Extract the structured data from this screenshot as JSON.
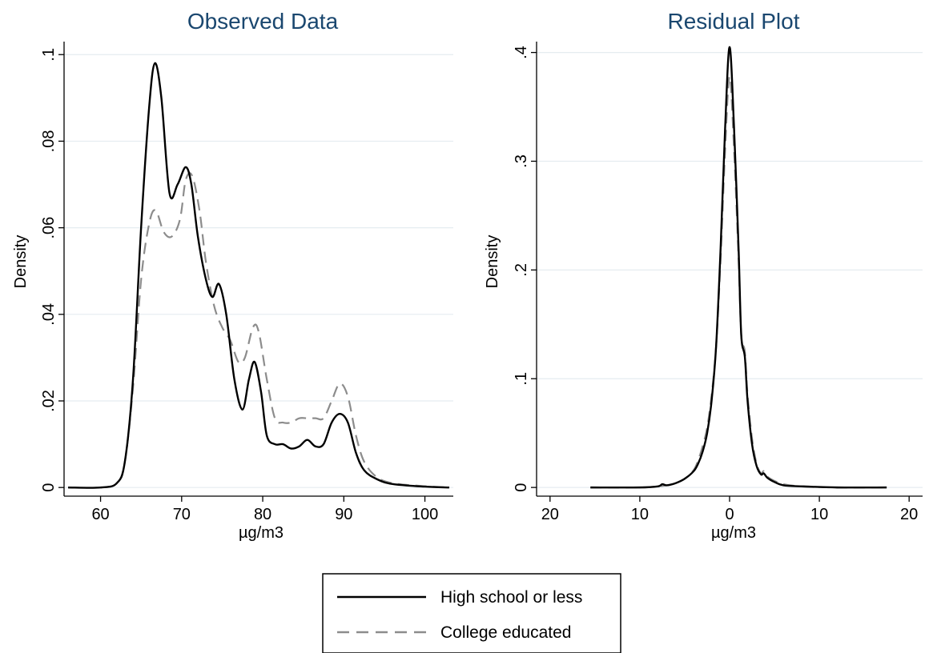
{
  "colors": {
    "background": "#ffffff",
    "title": "#1a476f",
    "grid": "#e5ecf0",
    "axis": "#000000",
    "series_high_school": "#000000",
    "series_college": "#8c8c8c"
  },
  "legend": {
    "entries": [
      {
        "label": "High school or less",
        "style": "solid"
      },
      {
        "label": "College educated",
        "style": "dashed"
      }
    ]
  },
  "chart_data": [
    {
      "type": "line",
      "title": "Observed Data",
      "xlabel": "µg/m3",
      "ylabel": "Density",
      "xlim": [
        55.5,
        103.5
      ],
      "ylim": [
        -0.002,
        0.103
      ],
      "xticks": [
        60,
        70,
        80,
        90,
        100
      ],
      "xtick_labels": [
        "60",
        "70",
        "80",
        "90",
        "100"
      ],
      "yticks": [
        0,
        0.02,
        0.04,
        0.06,
        0.08,
        0.1
      ],
      "ytick_labels": [
        "0",
        ".02",
        ".04",
        ".06",
        ".08",
        ".1"
      ],
      "grid": true,
      "series": [
        {
          "name": "High school or less",
          "style": "solid",
          "x": [
            56,
            60,
            62,
            63,
            64,
            65,
            66,
            66.7,
            67.5,
            68.5,
            69.5,
            70.5,
            71.2,
            72,
            73,
            73.8,
            74.6,
            75.5,
            76.5,
            77.5,
            78.3,
            79,
            79.8,
            80.5,
            81.5,
            82.5,
            83.5,
            84.5,
            85.5,
            86.5,
            87.5,
            88.5,
            89.5,
            90.5,
            91.5,
            92.5,
            94,
            96,
            100,
            103
          ],
          "y": [
            0,
            0,
            0.001,
            0.006,
            0.025,
            0.06,
            0.088,
            0.098,
            0.09,
            0.068,
            0.07,
            0.074,
            0.07,
            0.058,
            0.048,
            0.044,
            0.047,
            0.04,
            0.025,
            0.018,
            0.025,
            0.029,
            0.022,
            0.012,
            0.01,
            0.01,
            0.009,
            0.0095,
            0.011,
            0.0095,
            0.01,
            0.015,
            0.017,
            0.015,
            0.008,
            0.004,
            0.002,
            0.0008,
            0.0002,
            0
          ]
        },
        {
          "name": "College educated",
          "style": "dashed",
          "x": [
            56,
            60,
            62,
            63,
            64,
            65,
            66,
            66.8,
            67.8,
            68.8,
            69.8,
            70.5,
            71.3,
            72.2,
            73,
            74,
            75,
            76,
            77,
            77.8,
            78.8,
            79.5,
            80.5,
            81.5,
            82.5,
            83.5,
            84.5,
            85.5,
            86.5,
            87.5,
            88.5,
            89.5,
            90.5,
            91.5,
            92.5,
            94,
            96,
            100,
            103
          ],
          "y": [
            0,
            0,
            0.001,
            0.006,
            0.023,
            0.048,
            0.061,
            0.064,
            0.059,
            0.058,
            0.062,
            0.071,
            0.072,
            0.064,
            0.052,
            0.042,
            0.037,
            0.034,
            0.029,
            0.03,
            0.037,
            0.036,
            0.025,
            0.016,
            0.015,
            0.015,
            0.016,
            0.016,
            0.016,
            0.016,
            0.02,
            0.024,
            0.021,
            0.012,
            0.006,
            0.0025,
            0.001,
            0.0003,
            0
          ]
        }
      ]
    },
    {
      "type": "line",
      "title": "Residual Plot",
      "xlabel": "µg/m3",
      "ylabel": "Density",
      "xlim": [
        -21.5,
        21.5
      ],
      "ylim": [
        -0.008,
        0.41
      ],
      "xticks": [
        -20,
        -10,
        0,
        10,
        20
      ],
      "xtick_labels": [
        "20",
        "10",
        "0",
        "10",
        "20"
      ],
      "yticks": [
        0,
        0.1,
        0.2,
        0.3,
        0.4
      ],
      "ytick_labels": [
        "0",
        ".1",
        ".2",
        ".3",
        ".4"
      ],
      "grid": true,
      "series": [
        {
          "name": "High school or less",
          "style": "solid",
          "x": [
            -15.5,
            -10,
            -8,
            -7.5,
            -7,
            -6,
            -5,
            -4,
            -3.5,
            -3,
            -2.5,
            -2,
            -1.5,
            -1,
            -0.5,
            0,
            0.5,
            1,
            1.3,
            1.7,
            2,
            2.5,
            3,
            3.5,
            3.8,
            4.2,
            5,
            6,
            8,
            12,
            17.5
          ],
          "y": [
            0,
            0,
            0.001,
            0.003,
            0.002,
            0.004,
            0.008,
            0.015,
            0.022,
            0.033,
            0.05,
            0.08,
            0.13,
            0.22,
            0.33,
            0.405,
            0.33,
            0.22,
            0.14,
            0.12,
            0.08,
            0.04,
            0.02,
            0.012,
            0.013,
            0.009,
            0.005,
            0.002,
            0.001,
            0,
            0
          ]
        },
        {
          "name": "College educated",
          "style": "dashed",
          "x": [
            -15.5,
            -10,
            -8,
            -7,
            -6,
            -5,
            -4,
            -3.5,
            -3,
            -2.5,
            -2,
            -1.5,
            -1,
            -0.5,
            0,
            0.5,
            1,
            1.3,
            1.7,
            2,
            2.5,
            3,
            3.5,
            3.8,
            4.2,
            5,
            6,
            8,
            12,
            17.5
          ],
          "y": [
            0,
            0,
            0.001,
            0.002,
            0.004,
            0.008,
            0.016,
            0.025,
            0.038,
            0.055,
            0.085,
            0.13,
            0.21,
            0.31,
            0.378,
            0.31,
            0.21,
            0.14,
            0.125,
            0.085,
            0.045,
            0.022,
            0.013,
            0.015,
            0.01,
            0.006,
            0.003,
            0.001,
            0,
            0
          ]
        }
      ]
    }
  ]
}
